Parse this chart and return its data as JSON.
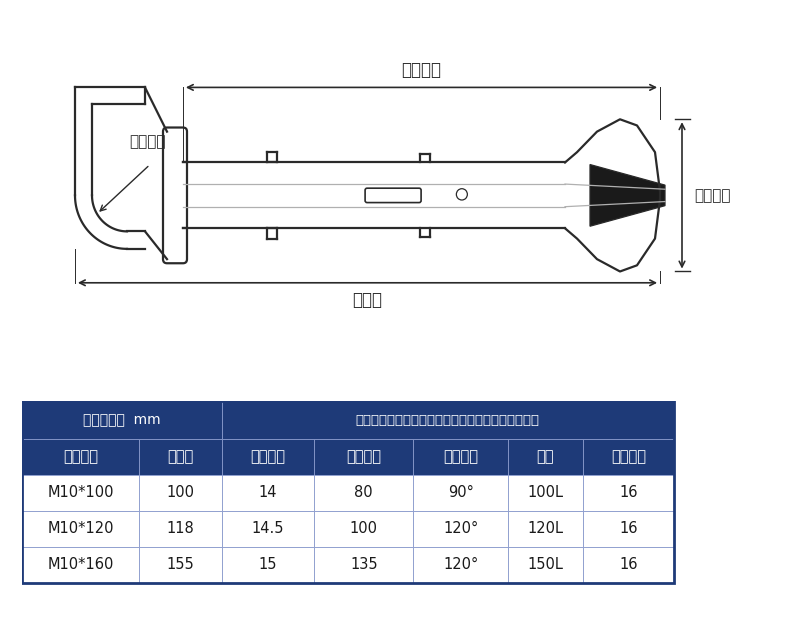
{
  "bg_color": "#ffffff",
  "table_header_bg": "#1e3a78",
  "table_header_text": "#ffffff",
  "table_border": "#1e3a78",
  "line_color": "#2a2a2a",
  "unit_row": "测量单位：  mm",
  "note_text": "注：测量为手工测量可能存在误差，请以实物为准！",
  "headers": [
    "规格型号",
    "总长度",
    "套管外径",
    "打孔深度",
    "弯头角度",
    "承重",
    "推荐钻头"
  ],
  "rows": [
    [
      "M10*100",
      "100",
      "14",
      "80",
      "90°",
      "100L",
      "16"
    ],
    [
      "M10*120",
      "118",
      "14.5",
      "100",
      "120°",
      "120L",
      "16"
    ],
    [
      "M10*160",
      "155",
      "15",
      "135",
      "120°",
      "150L",
      "16"
    ]
  ],
  "label_dksd": "打孔深度",
  "label_zzcd": "总长度",
  "label_gtwd": "套管外径",
  "label_wtjd": "弯头角度"
}
